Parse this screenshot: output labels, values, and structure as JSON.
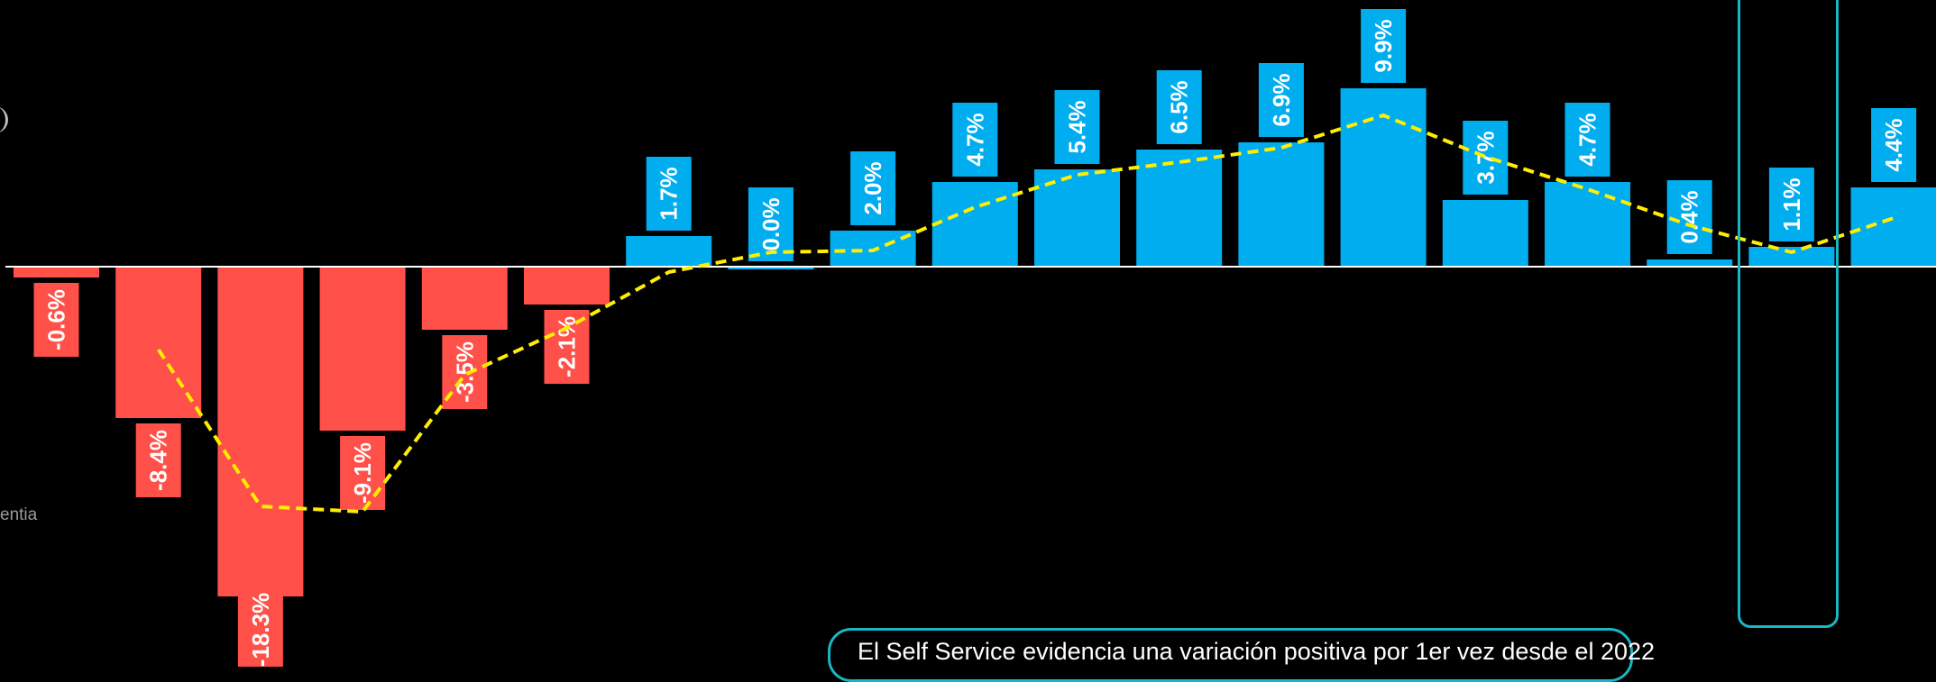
{
  "side_note": "entia",
  "callout_text": "El Self Service evidencia una variación positiva por 1er vez desde el 2022",
  "colors": {
    "background": "#000000",
    "negative": "#ff5049",
    "positive": "#00adef",
    "trend": "#ffee00",
    "highlight": "#19b6c4",
    "baseline": "#ffffff"
  },
  "chart_data": {
    "type": "bar",
    "title": "",
    "xlabel": "",
    "ylabel": "",
    "ylim": [
      -20.5,
      11
    ],
    "grid": false,
    "legend": "none",
    "series": [
      {
        "name": "",
        "values": [
          -0.6,
          -8.4,
          -18.3,
          -9.1,
          -3.5,
          -2.1,
          1.7,
          0.0,
          2.0,
          4.7,
          5.4,
          6.5,
          6.9,
          9.9,
          3.7,
          4.7,
          0.4,
          1.1,
          4.4
        ],
        "labels": [
          "-0.6%",
          "-8.4%",
          "-18.3%",
          "-9.1%",
          "-3.5%",
          "-2.1%",
          "1.7%",
          "0.0%",
          "2.0%",
          "4.7%",
          "5.4%",
          "6.5%",
          "6.9%",
          "9.9%",
          "3.7%",
          "4.7%",
          "0.4%",
          "1.1%",
          "4.4%"
        ]
      },
      {
        "name": "",
        "type": "line",
        "style": "dashed",
        "start_index": 1,
        "values": [
          -4.6,
          -13.3,
          -13.6,
          -6.0,
          -3.4,
          -0.3,
          0.8,
          0.9,
          3.3,
          5.1,
          5.8,
          6.6,
          8.4,
          6.1,
          4.3,
          2.3,
          0.8,
          2.7
        ]
      }
    ],
    "highlight_index": 17
  }
}
